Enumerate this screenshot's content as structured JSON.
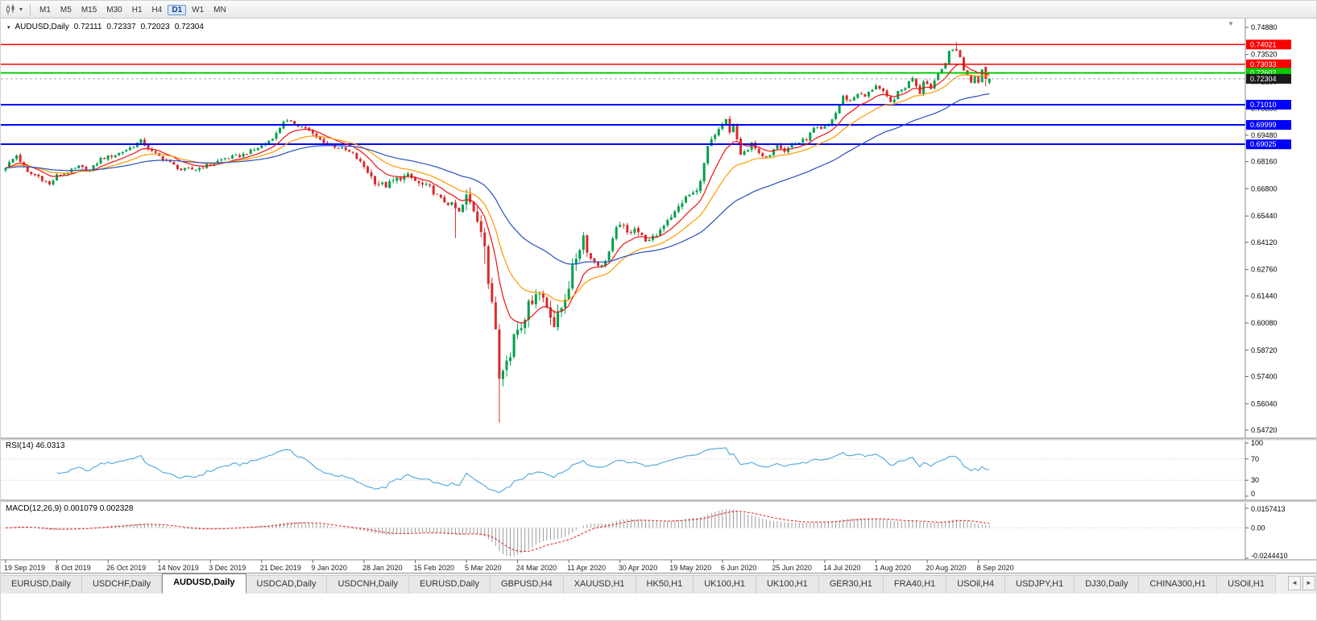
{
  "toolbar": {
    "timeframes": [
      "M1",
      "M5",
      "M15",
      "M30",
      "H1",
      "H4",
      "D1",
      "W1",
      "MN"
    ],
    "active_timeframe": "D1",
    "caret_glyph": "▾"
  },
  "chart": {
    "header": {
      "caret": "▾",
      "symbol": "AUDUSD,Daily",
      "open": "0.72111",
      "high": "0.72337",
      "low": "0.72023",
      "close": "0.72304"
    },
    "shift_marker": "▼",
    "price_axis": {
      "max": 0.7488,
      "min": 0.5472,
      "ticks": [
        "0.74880",
        "0.73520",
        "0.72160",
        "0.70800",
        "0.69480",
        "0.68160",
        "0.66800",
        "0.65440",
        "0.64120",
        "0.62760",
        "0.61440",
        "0.60080",
        "0.58720",
        "0.57400",
        "0.56040",
        "0.54720"
      ]
    },
    "current_price": {
      "label": "0.72304",
      "value": 0.72304
    }
  },
  "chart_data": {
    "type": "candlestick",
    "symbol": "AUDUSD",
    "timeframe": "Daily",
    "bar_count": 270,
    "label_step": 14,
    "x_labels": [
      "19 Sep 2019",
      "8 Oct 2019",
      "26 Oct 2019",
      "14 Nov 2019",
      "3 Dec 2019",
      "21 Dec 2019",
      "9 Jan 2020",
      "28 Jan 2020",
      "15 Feb 2020",
      "5 Mar 2020",
      "24 Mar 2020",
      "11 Apr 2020",
      "30 Apr 2020",
      "19 May 2020",
      "6 Jun 2020",
      "25 Jun 2020",
      "14 Jul 2020",
      "1 Aug 2020",
      "20 Aug 2020",
      "8 Sep 2020"
    ],
    "close_anchors": [
      [
        0,
        0.679
      ],
      [
        3,
        0.6848
      ],
      [
        6,
        0.676
      ],
      [
        9,
        0.6742
      ],
      [
        12,
        0.67
      ],
      [
        14,
        0.6745
      ],
      [
        17,
        0.6762
      ],
      [
        20,
        0.679
      ],
      [
        23,
        0.677
      ],
      [
        26,
        0.683
      ],
      [
        30,
        0.685
      ],
      [
        34,
        0.6885
      ],
      [
        37,
        0.692
      ],
      [
        40,
        0.6865
      ],
      [
        44,
        0.682
      ],
      [
        48,
        0.6775
      ],
      [
        52,
        0.6778
      ],
      [
        56,
        0.6805
      ],
      [
        60,
        0.6832
      ],
      [
        64,
        0.6845
      ],
      [
        68,
        0.6875
      ],
      [
        71,
        0.6905
      ],
      [
        74,
        0.6955
      ],
      [
        76,
        0.702
      ],
      [
        79,
        0.7005
      ],
      [
        82,
        0.6985
      ],
      [
        85,
        0.6935
      ],
      [
        88,
        0.6905
      ],
      [
        92,
        0.688
      ],
      [
        95,
        0.6855
      ],
      [
        98,
        0.679
      ],
      [
        101,
        0.6715
      ],
      [
        104,
        0.6695
      ],
      [
        107,
        0.673
      ],
      [
        110,
        0.6745
      ],
      [
        113,
        0.6705
      ],
      [
        116,
        0.6685
      ],
      [
        119,
        0.6625
      ],
      [
        122,
        0.66
      ],
      [
        124,
        0.656
      ],
      [
        126,
        0.6635
      ],
      [
        128,
        0.658
      ],
      [
        130,
        0.649
      ],
      [
        131,
        0.64
      ],
      [
        132,
        0.618
      ],
      [
        133,
        0.612
      ],
      [
        134,
        0.599
      ],
      [
        135,
        0.576
      ],
      [
        136,
        0.58
      ],
      [
        138,
        0.5835
      ],
      [
        139,
        0.596
      ],
      [
        141,
        0.601
      ],
      [
        143,
        0.609
      ],
      [
        145,
        0.617
      ],
      [
        147,
        0.6135
      ],
      [
        149,
        0.606
      ],
      [
        150,
        0.5995
      ],
      [
        152,
        0.6085
      ],
      [
        154,
        0.62
      ],
      [
        156,
        0.634
      ],
      [
        158,
        0.6445
      ],
      [
        160,
        0.633
      ],
      [
        163,
        0.629
      ],
      [
        165,
        0.6365
      ],
      [
        167,
        0.6475
      ],
      [
        168,
        0.651
      ],
      [
        170,
        0.6455
      ],
      [
        172,
        0.649
      ],
      [
        174,
        0.644
      ],
      [
        176,
        0.6415
      ],
      [
        178,
        0.645
      ],
      [
        181,
        0.653
      ],
      [
        183,
        0.656
      ],
      [
        185,
        0.6615
      ],
      [
        187,
        0.665
      ],
      [
        189,
        0.6665
      ],
      [
        191,
        0.68
      ],
      [
        192,
        0.689
      ],
      [
        194,
        0.694
      ],
      [
        195,
        0.697
      ],
      [
        197,
        0.702
      ],
      [
        198,
        0.696
      ],
      [
        199,
        0.7
      ],
      [
        201,
        0.685
      ],
      [
        203,
        0.687
      ],
      [
        204,
        0.692
      ],
      [
        206,
        0.685
      ],
      [
        208,
        0.683
      ],
      [
        210,
        0.6885
      ],
      [
        211,
        0.691
      ],
      [
        213,
        0.687
      ],
      [
        215,
        0.69
      ],
      [
        217,
        0.6912
      ],
      [
        219,
        0.693
      ],
      [
        221,
        0.698
      ],
      [
        223,
        0.6975
      ],
      [
        225,
        0.7
      ],
      [
        227,
        0.706
      ],
      [
        229,
        0.714
      ],
      [
        231,
        0.712
      ],
      [
        233,
        0.716
      ],
      [
        235,
        0.714
      ],
      [
        238,
        0.72
      ],
      [
        240,
        0.716
      ],
      [
        242,
        0.711
      ],
      [
        244,
        0.716
      ],
      [
        246,
        0.719
      ],
      [
        248,
        0.724
      ],
      [
        250,
        0.716
      ],
      [
        251,
        0.7225
      ],
      [
        253,
        0.7185
      ],
      [
        255,
        0.726
      ],
      [
        257,
        0.731
      ],
      [
        258,
        0.7365
      ],
      [
        259,
        0.7376
      ],
      [
        260,
        0.7376
      ],
      [
        261,
        0.734
      ],
      [
        262,
        0.727
      ],
      [
        263,
        0.725
      ],
      [
        264,
        0.7215
      ],
      [
        265,
        0.724
      ],
      [
        266,
        0.721
      ],
      [
        267,
        0.728
      ],
      [
        268,
        0.7231
      ],
      [
        269,
        0.72304
      ]
    ],
    "candle_overrides": {
      "123": {
        "l": 0.6433
      },
      "131": {
        "l": 0.6305
      },
      "135": {
        "l": 0.551
      },
      "260": {
        "h": 0.7414
      },
      "268": {
        "o": 0.729,
        "h": 0.7293,
        "l": 0.7192,
        "c": 0.7231
      },
      "269": {
        "o": 0.72111,
        "h": 0.72337,
        "l": 0.72023,
        "c": 0.72304
      }
    },
    "volatility_zones": [
      [
        0,
        100,
        0.002
      ],
      [
        100,
        126,
        0.003
      ],
      [
        126,
        160,
        0.007
      ],
      [
        160,
        200,
        0.0032
      ],
      [
        200,
        255,
        0.0022
      ],
      [
        255,
        270,
        0.0012
      ]
    ],
    "moving_averages": [
      {
        "period": 10,
        "color": "#ee1111"
      },
      {
        "period": 21,
        "color": "#ff9900"
      },
      {
        "period": 50,
        "color": "#2a4fc0"
      }
    ],
    "horizontal_lines": [
      {
        "price": 0.74021,
        "label": "0.74021",
        "color": "#ff0000",
        "width": 1.5
      },
      {
        "price": 0.73033,
        "label": "0.73033",
        "color": "#ff0000",
        "width": 1.5
      },
      {
        "price": 0.72602,
        "label": "0.72602",
        "color": "#00cc00",
        "width": 2
      },
      {
        "price": 0.7101,
        "label": "0.71010",
        "color": "#0000ff",
        "width": 2
      },
      {
        "price": 0.69999,
        "label": "0.69999",
        "color": "#0000ff",
        "width": 2
      },
      {
        "price": 0.69025,
        "label": "0.69025",
        "color": "#0000ff",
        "width": 2
      }
    ],
    "colors": {
      "up": "#00a04a",
      "down": "#d92b2b",
      "rsi_line": "#4da6dd",
      "macd_hist": "#999999",
      "macd_signal": "#e02020",
      "current_price_bg": "#1a1a1a"
    },
    "rsi": {
      "name": "RSI(14)",
      "value": "46.0313",
      "period": 14,
      "levels": [
        70,
        30
      ],
      "axis_labels": [
        "100",
        "70",
        "30",
        "0"
      ]
    },
    "macd": {
      "name": "MACD(12,26,9)",
      "values": "0.001079 0.002328",
      "fast": 12,
      "slow": 26,
      "signal": 9,
      "axis_labels": [
        "0.0157413",
        "0.00",
        "-0.0244410"
      ],
      "scale_max": 0.0157413,
      "scale_min": -0.024441
    }
  },
  "tabs": {
    "items": [
      "EURUSD,Daily",
      "USDCHF,Daily",
      "AUDUSD,Daily",
      "USDCAD,Daily",
      "USDCNH,Daily",
      "EURUSD,Daily",
      "GBPUSD,H4",
      "XAUUSD,H1",
      "HK50,H1",
      "UK100,H1",
      "UK100,H1",
      "GER30,H1",
      "FRA40,H1",
      "USOil,H4",
      "USDJPY,H1",
      "DJ30,Daily",
      "CHINA300,H1",
      "USOil,H1"
    ],
    "active_index": 2,
    "scroll_left": "◄",
    "scroll_right": "►"
  }
}
